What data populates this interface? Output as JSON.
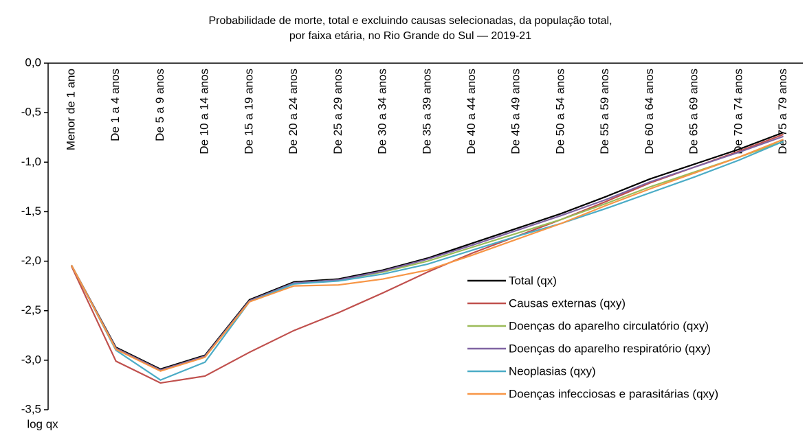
{
  "chart_data": {
    "type": "line",
    "title": [
      "Probabilidade de morte, total e excluindo causas selecionadas, da população total,",
      "por faixa etária, no Rio Grande do Sul — 2019-21"
    ],
    "y_label": "log  qx",
    "categories": [
      "Menor de 1 ano",
      "De 1 a 4 anos",
      "De 5 a 9 anos",
      "De 10 a 14 anos",
      "De 15 a 19 anos",
      "De 20 a 24 anos",
      "De 25 a 29 anos",
      "De 30 a 34 anos",
      "De 35 a 39 anos",
      "De 40 a 44 anos",
      "De 45 a 49 anos",
      "De 50 a 54 anos",
      "De 55 a 59 anos",
      "De 60 a 64 anos",
      "De 65 a 69 anos",
      "De 70 a 74 anos",
      "De 75 a 79 anos"
    ],
    "series": [
      {
        "name": "Total (qx)",
        "color": "#000000",
        "values": [
          -2.04,
          -2.87,
          -3.09,
          -2.95,
          -2.39,
          -2.21,
          -2.18,
          -2.09,
          -1.97,
          -1.82,
          -1.67,
          -1.52,
          -1.35,
          -1.17,
          -1.02,
          -0.87,
          -0.7
        ]
      },
      {
        "name": "Causas externas (qxy)",
        "color": "#c0504d",
        "values": [
          -2.05,
          -3.01,
          -3.23,
          -3.16,
          -2.92,
          -2.7,
          -2.52,
          -2.32,
          -2.11,
          -1.92,
          -1.75,
          -1.58,
          -1.4,
          -1.21,
          -1.05,
          -0.89,
          -0.72
        ]
      },
      {
        "name": "Doenças do aparelho circulatório (qxy)",
        "color": "#9bbb59",
        "values": [
          -2.04,
          -2.88,
          -3.1,
          -2.96,
          -2.4,
          -2.22,
          -2.19,
          -2.11,
          -2.0,
          -1.86,
          -1.72,
          -1.58,
          -1.42,
          -1.25,
          -1.1,
          -0.95,
          -0.79
        ]
      },
      {
        "name": "Doenças do aparelho respiratório (qxy)",
        "color": "#8064a2",
        "values": [
          -2.04,
          -2.88,
          -3.1,
          -2.96,
          -2.4,
          -2.22,
          -2.19,
          -2.1,
          -1.98,
          -1.84,
          -1.69,
          -1.54,
          -1.38,
          -1.2,
          -1.05,
          -0.9,
          -0.74
        ]
      },
      {
        "name": "Neoplasias (qxy)",
        "color": "#4bacc6",
        "values": [
          -2.04,
          -2.9,
          -3.2,
          -3.02,
          -2.41,
          -2.23,
          -2.2,
          -2.13,
          -2.03,
          -1.89,
          -1.75,
          -1.62,
          -1.47,
          -1.31,
          -1.15,
          -0.98,
          -0.79
        ]
      },
      {
        "name": "Doenças infecciosas e parasitárias (qxy)",
        "color": "#f79646",
        "values": [
          -2.04,
          -2.89,
          -3.11,
          -2.97,
          -2.41,
          -2.25,
          -2.24,
          -2.18,
          -2.09,
          -1.94,
          -1.78,
          -1.62,
          -1.44,
          -1.27,
          -1.11,
          -0.95,
          -0.77
        ]
      }
    ],
    "ylim": [
      -3.5,
      0
    ],
    "yticks": [
      {
        "value": 0,
        "label": "0,0"
      },
      {
        "value": -0.5,
        "label": "-0,5"
      },
      {
        "value": -1,
        "label": "-1,0"
      },
      {
        "value": -1.5,
        "label": "-1,5"
      },
      {
        "value": -2,
        "label": "-2,0"
      },
      {
        "value": -2.5,
        "label": "-2,5"
      },
      {
        "value": -3,
        "label": "-3,0"
      },
      {
        "value": -3.5,
        "label": "-3,5"
      }
    ],
    "grid": false,
    "legend": "lower right"
  }
}
